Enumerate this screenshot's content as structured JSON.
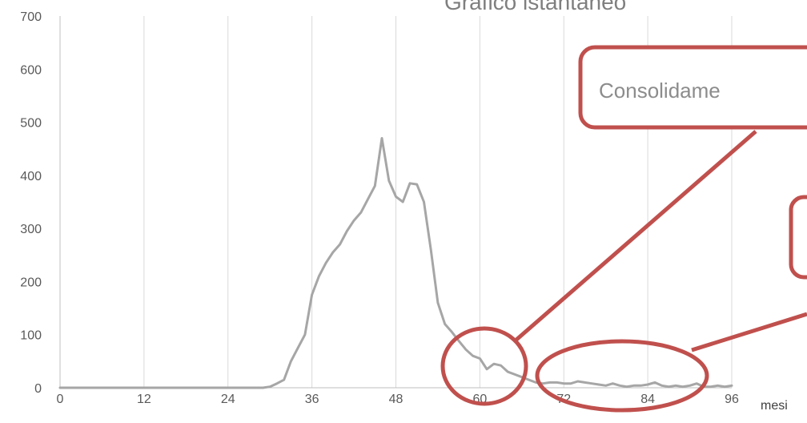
{
  "chart_data": {
    "type": "line",
    "title": "Grafico istantaneo",
    "xlabel": "mesi",
    "ylabel": "",
    "xlim": [
      0,
      96
    ],
    "ylim": [
      0,
      700
    ],
    "x_ticks": [
      "0",
      "12",
      "24",
      "36",
      "48",
      "60",
      "72",
      "84",
      "96"
    ],
    "y_ticks": [
      "0",
      "100",
      "200",
      "300",
      "400",
      "500",
      "600",
      "700"
    ],
    "grid": "vertical",
    "line_color": "#a6a6a6",
    "series": [
      {
        "x": [
          0,
          1,
          2,
          3,
          4,
          5,
          6,
          7,
          8,
          9,
          10,
          11,
          12,
          13,
          14,
          15,
          16,
          17,
          18,
          19,
          20,
          21,
          22,
          23,
          24,
          25,
          26,
          27,
          28,
          29,
          30,
          31,
          32,
          33,
          34,
          35,
          36,
          37,
          38,
          39,
          40,
          41,
          42,
          43,
          44,
          45,
          46,
          47,
          48,
          49,
          50,
          51,
          52,
          53,
          54,
          55,
          56,
          57,
          58,
          59,
          60,
          61,
          62,
          63,
          64,
          65,
          66,
          67,
          68,
          69,
          70,
          71,
          72,
          73,
          74,
          75,
          76,
          77,
          78,
          79,
          80,
          81,
          82,
          83,
          84,
          85,
          86,
          87,
          88,
          89,
          90,
          91,
          92,
          93,
          94,
          95,
          96
        ],
        "y": [
          0,
          0,
          0,
          0,
          0,
          0,
          0,
          0,
          0,
          0,
          0,
          0,
          0,
          0,
          0,
          0,
          0,
          0,
          0,
          0,
          0,
          0,
          0,
          0,
          0,
          0,
          0,
          0,
          0,
          0,
          2,
          8,
          15,
          50,
          75,
          100,
          175,
          210,
          235,
          255,
          270,
          295,
          315,
          330,
          355,
          380,
          470,
          390,
          360,
          350,
          385,
          383,
          350,
          260,
          160,
          120,
          105,
          88,
          72,
          60,
          55,
          35,
          45,
          42,
          30,
          25,
          20,
          15,
          10,
          8,
          10,
          10,
          8,
          8,
          12,
          10,
          8,
          6,
          4,
          8,
          4,
          2,
          4,
          4,
          6,
          10,
          4,
          2,
          4,
          2,
          4,
          8,
          2,
          2,
          4,
          2,
          4
        ]
      }
    ],
    "annotations": [
      {
        "text": "Consolidame",
        "target": "x≈60, y≈50"
      },
      {
        "text": "",
        "target": "x≈72–96, y≈0–10"
      }
    ]
  },
  "colors": {
    "callout": "#c0504d",
    "grid": "#d9d9d9",
    "axis": "#bfbfbf"
  }
}
